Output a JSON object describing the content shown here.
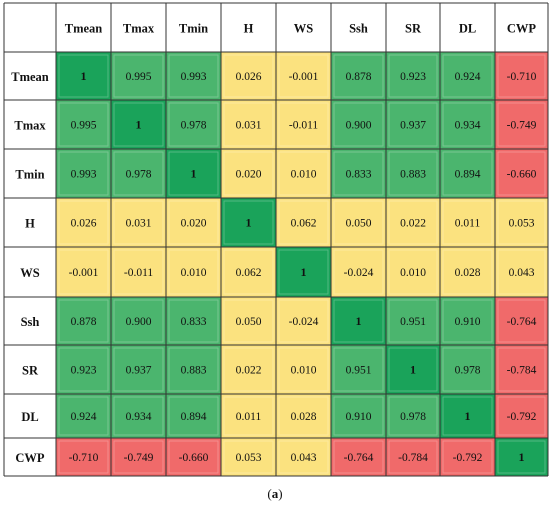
{
  "chart_data": {
    "type": "heatmap",
    "title": "",
    "xlabel": "",
    "ylabel": "",
    "variables": [
      "Tmean",
      "Tmax",
      "Tmin",
      "H",
      "WS",
      "Ssh",
      "SR",
      "DL",
      "CWP"
    ],
    "matrix": [
      [
        "1",
        "0.995",
        "0.993",
        "0.026",
        "-0.001",
        "0.878",
        "0.923",
        "0.924",
        "-0.710"
      ],
      [
        "0.995",
        "1",
        "0.978",
        "0.031",
        "-0.011",
        "0.900",
        "0.937",
        "0.934",
        "-0.749"
      ],
      [
        "0.993",
        "0.978",
        "1",
        "0.020",
        "0.010",
        "0.833",
        "0.883",
        "0.894",
        "-0.660"
      ],
      [
        "0.026",
        "0.031",
        "0.020",
        "1",
        "0.062",
        "0.050",
        "0.022",
        "0.011",
        "0.053"
      ],
      [
        "-0.001",
        "-0.011",
        "0.010",
        "0.062",
        "1",
        "-0.024",
        "0.010",
        "0.028",
        "0.043"
      ],
      [
        "0.878",
        "0.900",
        "0.833",
        "0.050",
        "-0.024",
        "1",
        "0.951",
        "0.910",
        "-0.764"
      ],
      [
        "0.923",
        "0.937",
        "0.883",
        "0.022",
        "0.010",
        "0.951",
        "1",
        "0.978",
        "-0.784"
      ],
      [
        "0.924",
        "0.934",
        "0.894",
        "0.011",
        "0.028",
        "0.910",
        "0.978",
        "1",
        "-0.792"
      ],
      [
        "-0.710",
        "-0.749",
        "-0.660",
        "0.053",
        "0.043",
        "-0.764",
        "-0.784",
        "-0.792",
        "1"
      ]
    ],
    "colors": {
      "diagonal": "#1aa35a",
      "strong_positive": "#4bb56e",
      "weak": "#fbe27f",
      "negative": "#f06a6a",
      "grid": "#333333",
      "header_bg": "#ffffff"
    }
  },
  "caption": "(a)"
}
